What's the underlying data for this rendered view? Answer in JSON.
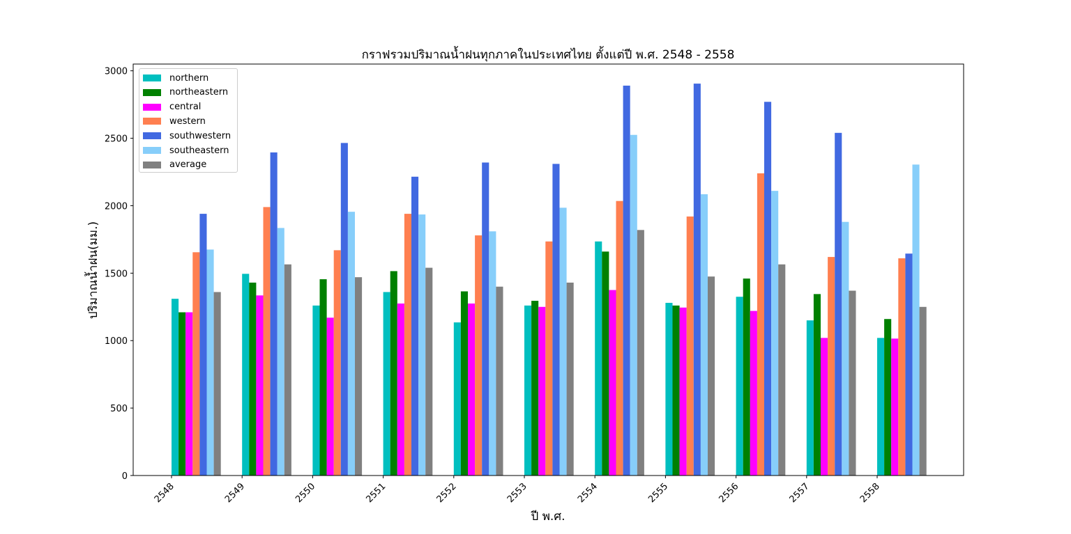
{
  "chart_data": {
    "type": "bar",
    "title": "กราฟรวมปริมาณน้ำฝนทุกภาคในประเทศไทย ตั้งแต่ปี พ.ศ. 2548 - 2558",
    "xlabel": "ปี พ.ศ.",
    "ylabel": "ปริมาณน้ำฝน(มม.)",
    "categories": [
      "2548",
      "2549",
      "2550",
      "2551",
      "2552",
      "2553",
      "2554",
      "2555",
      "2556",
      "2557",
      "2558"
    ],
    "ylim": [
      0,
      3050
    ],
    "yticks": [
      "0",
      "500",
      "1000",
      "1500",
      "2000",
      "2500",
      "3000"
    ],
    "legend_position": "top-left",
    "grid": false,
    "series": [
      {
        "name": "northern",
        "color": "#00bfbf",
        "values": [
          1310,
          1495,
          1260,
          1360,
          1135,
          1260,
          1735,
          1280,
          1325,
          1150,
          1020
        ]
      },
      {
        "name": "northeastern",
        "color": "#008000",
        "values": [
          1210,
          1430,
          1455,
          1515,
          1365,
          1295,
          1660,
          1260,
          1460,
          1345,
          1160
        ]
      },
      {
        "name": "central",
        "color": "#ff00ff",
        "values": [
          1210,
          1335,
          1170,
          1275,
          1275,
          1250,
          1375,
          1245,
          1220,
          1020,
          1015
        ]
      },
      {
        "name": "western",
        "color": "#ff7f50",
        "values": [
          1655,
          1990,
          1670,
          1940,
          1780,
          1735,
          2035,
          1920,
          2240,
          1620,
          1610
        ]
      },
      {
        "name": "southwestern",
        "color": "#4169e1",
        "values": [
          1940,
          2395,
          2465,
          2215,
          2320,
          2310,
          2890,
          2905,
          2770,
          2540,
          1645
        ]
      },
      {
        "name": "southeastern",
        "color": "#87cefa",
        "values": [
          1675,
          1835,
          1955,
          1935,
          1810,
          1985,
          2525,
          2085,
          2110,
          1880,
          2305
        ]
      },
      {
        "name": "average",
        "color": "#808080",
        "values": [
          1360,
          1565,
          1470,
          1540,
          1400,
          1430,
          1820,
          1475,
          1565,
          1370,
          1250
        ]
      }
    ]
  }
}
